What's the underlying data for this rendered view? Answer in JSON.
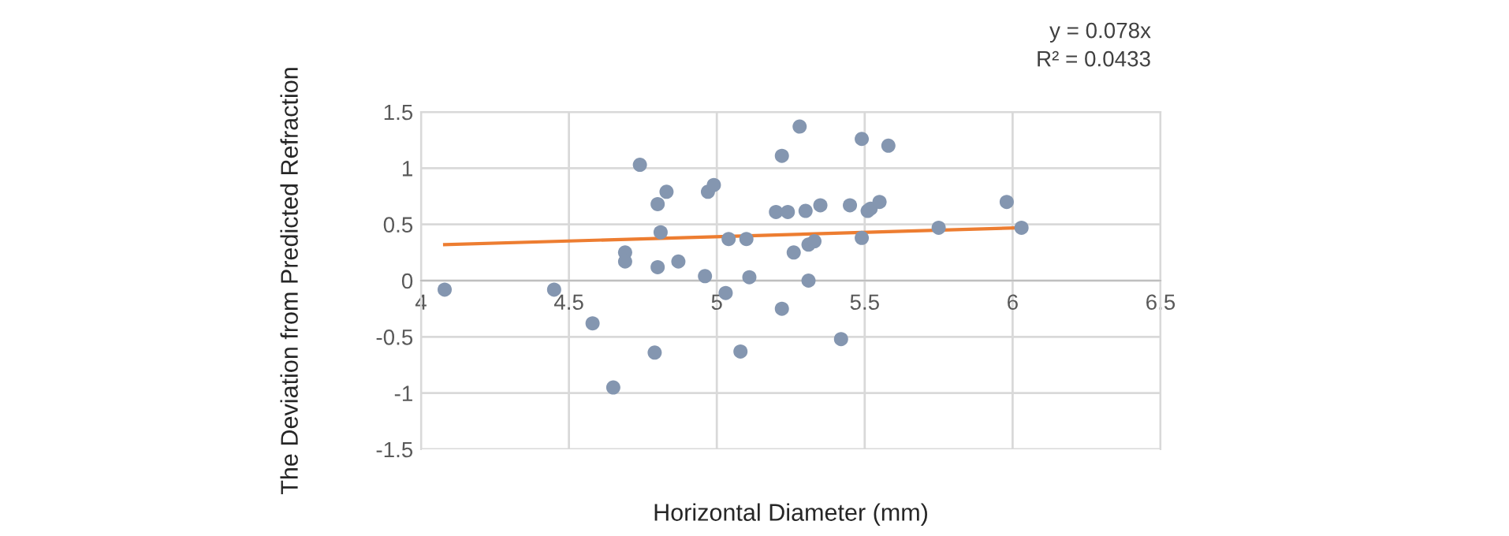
{
  "chart_data": {
    "type": "scatter",
    "xlabel": "Horizontal Diameter (mm)",
    "ylabel": "The Deviation from Predicted Refraction",
    "xlim": [
      4,
      6.5
    ],
    "xticks": [
      4,
      4.5,
      5,
      5.5,
      6,
      6.5
    ],
    "ylim": [
      -1.5,
      1.5
    ],
    "yticks": [
      -1.5,
      -1,
      -0.5,
      0,
      0.5,
      1,
      1.5
    ],
    "grid": true,
    "legend": false,
    "annotations": [
      "y = 0.078x",
      "R² = 0.0433"
    ],
    "series": [
      {
        "marker": "circle",
        "color": "#8496b0",
        "x": [
          4.08,
          4.45,
          4.58,
          4.65,
          4.74,
          4.69,
          4.69,
          4.8,
          4.79,
          4.8,
          4.81,
          4.83,
          4.87,
          4.97,
          4.99,
          4.96,
          5.03,
          5.04,
          5.1,
          5.08,
          5.11,
          5.2,
          5.22,
          5.22,
          5.24,
          5.26,
          5.28,
          5.3,
          5.31,
          5.31,
          5.33,
          5.35,
          5.42,
          5.45,
          5.49,
          5.49,
          5.51,
          5.52,
          5.55,
          5.58,
          5.75,
          5.98,
          6.03
        ],
        "values": [
          -0.08,
          -0.08,
          -0.38,
          -0.95,
          1.03,
          0.25,
          0.17,
          0.68,
          -0.64,
          0.12,
          0.43,
          0.79,
          0.17,
          0.79,
          0.85,
          0.04,
          -0.11,
          0.37,
          0.37,
          -0.63,
          0.03,
          0.61,
          1.11,
          -0.25,
          0.61,
          0.25,
          1.37,
          0.62,
          0.0,
          0.32,
          0.35,
          0.67,
          -0.52,
          0.67,
          1.26,
          0.38,
          0.62,
          0.64,
          0.7,
          1.2,
          0.47,
          0.7,
          0.47
        ]
      },
      {
        "type": "line",
        "color": "#ed7d31",
        "x": [
          4.08,
          6.03
        ],
        "values": [
          0.32,
          0.47
        ]
      }
    ]
  }
}
